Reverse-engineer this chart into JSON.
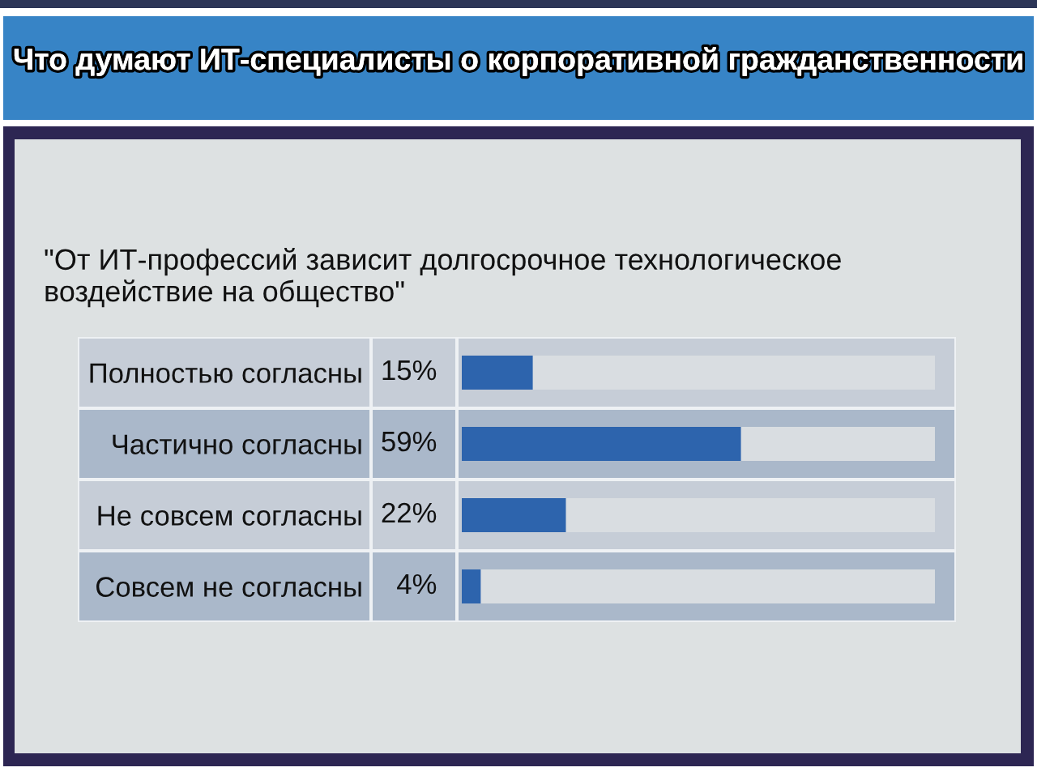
{
  "chart_data": {
    "type": "bar",
    "orientation": "horizontal",
    "title": "Что думают ИТ-специалисты о корпоративной гражданственности",
    "subtitle": "\"От ИТ-профессий зависит долгосрочное технологическое\nвоздействие на общество\"",
    "categories": [
      "Полностью согласны",
      "Частично согласны",
      "Не совсем согласны",
      "Совсем не согласны"
    ],
    "values": [
      15,
      59,
      22,
      4
    ],
    "value_labels": [
      "15%",
      "59%",
      "22%",
      "4%"
    ],
    "color": "#2d64ad",
    "xlim": [
      0,
      100
    ],
    "tick_labels": "y"
  }
}
